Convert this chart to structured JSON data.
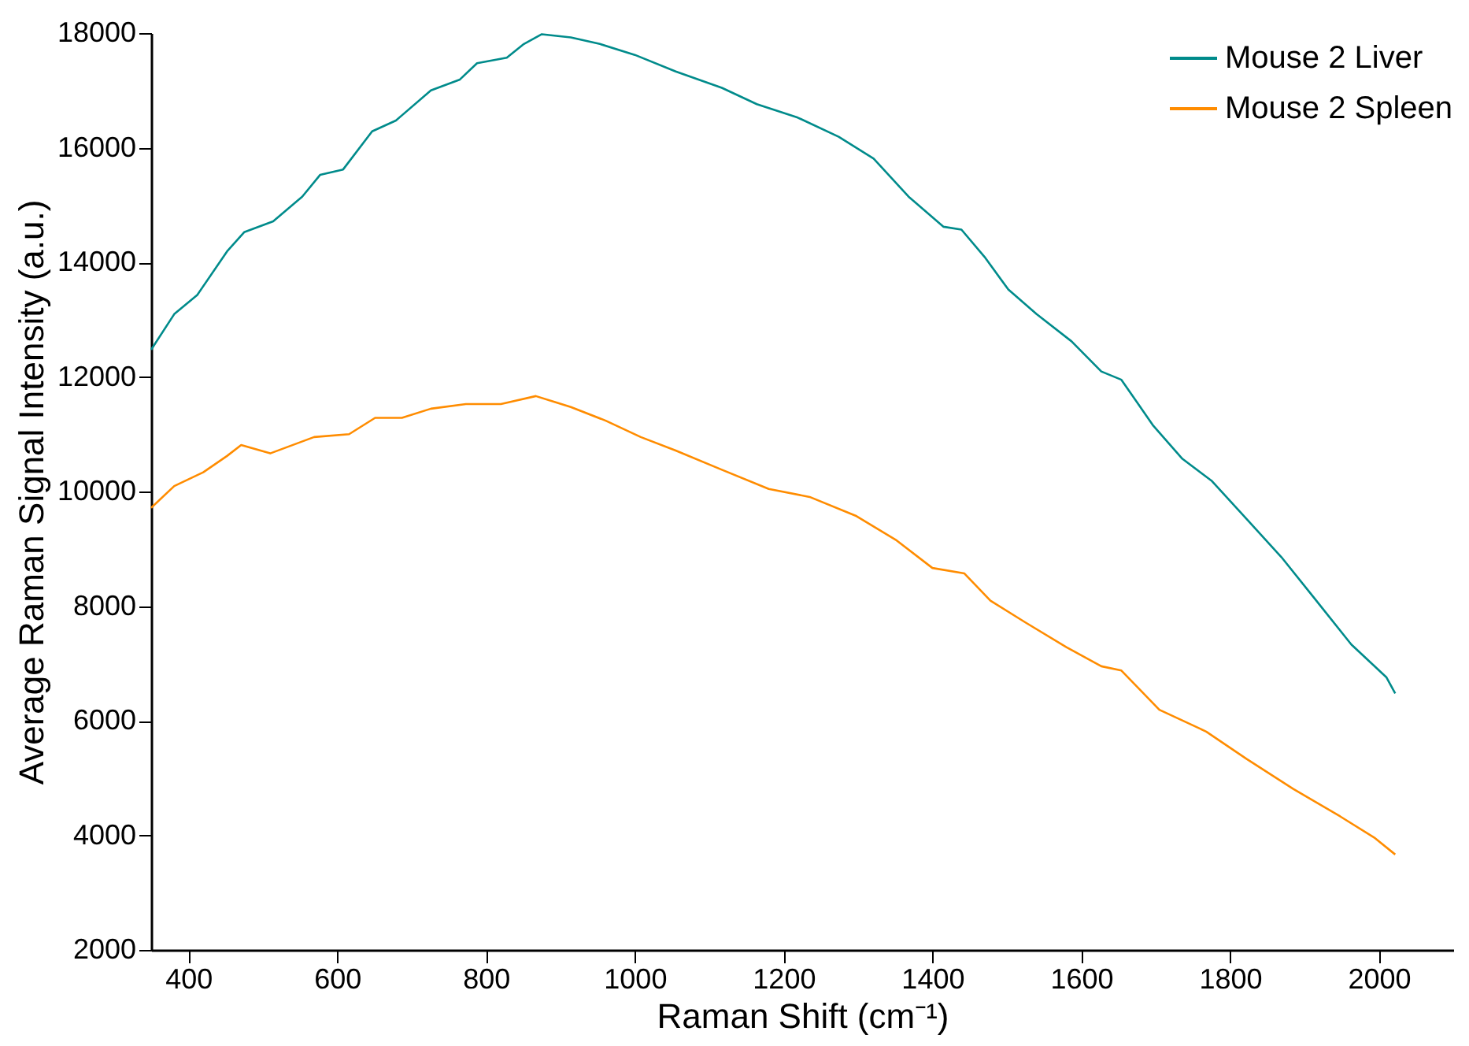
{
  "chart_data": {
    "type": "line",
    "xlabel": "Raman Shift (cm⁻¹)",
    "ylabel": "Average Raman Signal Intensity (a.u.)",
    "xlim": [
      350,
      2100
    ],
    "xticks": [
      400,
      600,
      800,
      1000,
      1200,
      1400,
      1600,
      1800,
      2000
    ],
    "ylim": [
      2000,
      18000
    ],
    "yticks": [
      2000,
      4000,
      6000,
      8000,
      10000,
      12000,
      14000,
      16000,
      18000
    ],
    "grid": false,
    "legend": "top right",
    "marker": "none",
    "line_style": "solid",
    "series": [
      {
        "name": "Mouse 2 Liver",
        "color": "#008b8b",
        "x": [
          350,
          381,
          412,
          452,
          475,
          514,
          553,
          577,
          608,
          647,
          679,
          726,
          765,
          788,
          828,
          851,
          875,
          914,
          953,
          1000,
          1055,
          1117,
          1164,
          1219,
          1274,
          1321,
          1368,
          1415,
          1439,
          1470,
          1502,
          1540,
          1587,
          1627,
          1654,
          1697,
          1736,
          1775,
          1822,
          1869,
          1916,
          1963,
          2010,
          2022
        ],
        "values": [
          12475,
          13095,
          13430,
          14190,
          14525,
          14715,
          15145,
          15525,
          15620,
          16285,
          16475,
          17000,
          17190,
          17475,
          17570,
          17810,
          17980,
          17925,
          17810,
          17620,
          17330,
          17045,
          16760,
          16525,
          16190,
          15810,
          15145,
          14620,
          14570,
          14095,
          13525,
          13095,
          12620,
          12095,
          11950,
          11145,
          10570,
          10190,
          9525,
          8855,
          8095,
          7330,
          6760,
          6475
        ]
      },
      {
        "name": "Mouse 2 Spleen",
        "color": "#ff8c00",
        "x": [
          350,
          381,
          420,
          452,
          471,
          510,
          569,
          616,
          651,
          687,
          726,
          773,
          820,
          867,
          914,
          961,
          1008,
          1055,
          1117,
          1180,
          1235,
          1298,
          1352,
          1400,
          1443,
          1478,
          1525,
          1580,
          1627,
          1654,
          1705,
          1768,
          1822,
          1885,
          1948,
          1995,
          2022
        ],
        "values": [
          9715,
          10095,
          10335,
          10620,
          10810,
          10665,
          10950,
          11000,
          11285,
          11285,
          11445,
          11525,
          11525,
          11665,
          11475,
          11235,
          10950,
          10715,
          10380,
          10045,
          9905,
          9570,
          9145,
          8665,
          8570,
          8095,
          7715,
          7285,
          6950,
          6875,
          6190,
          5810,
          5335,
          4810,
          4330,
          3950,
          3665
        ]
      }
    ]
  }
}
